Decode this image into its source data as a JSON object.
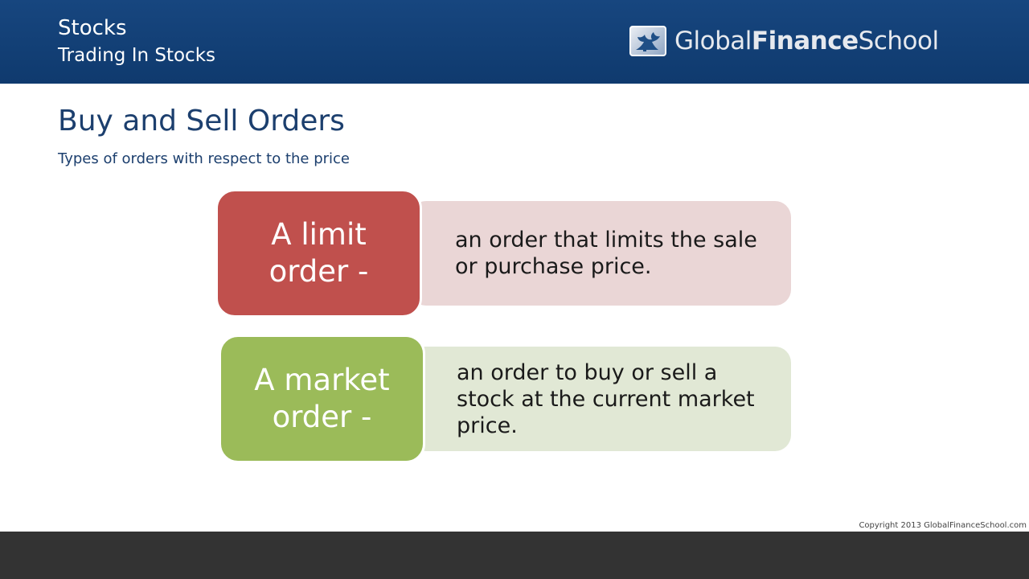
{
  "header": {
    "title": "Stocks",
    "subtitle": "Trading In Stocks",
    "logo": {
      "icon": "tree-icon",
      "text_part1": "Global",
      "text_part2": "Finance",
      "text_part3": "School"
    }
  },
  "slide": {
    "title": "Buy and Sell Orders",
    "subtitle": "Types of orders with respect to the price",
    "orders": [
      {
        "label_line1": "A limit",
        "label_line2": "order -",
        "definition": "an order that limits the sale or purchase price.",
        "label_color": "#c0504d",
        "definition_color": "#ead6d6"
      },
      {
        "label_line1": "A market",
        "label_line2": "order -",
        "definition": "an order to buy or sell a stock at the current market price.",
        "label_color": "#9bbb59",
        "definition_color": "#e1e8d5"
      }
    ]
  },
  "footer": {
    "copyright": "Copyright 2013 GlobalFinanceSchool.com"
  },
  "colors": {
    "header_background": "#0f3a6e",
    "title_text": "#1c3f6e",
    "footer_bar": "#333333"
  }
}
